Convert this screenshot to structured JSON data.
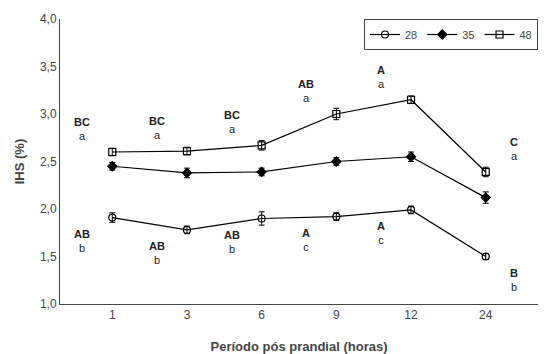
{
  "chart_data": {
    "type": "line",
    "categories": [
      "1",
      "3",
      "6",
      "9",
      "12",
      "24"
    ],
    "series": [
      {
        "name": "28",
        "color": "black",
        "marker": "circle-open",
        "line_style": "solid",
        "values": [
          1.91,
          1.78,
          1.9,
          1.92,
          1.99,
          1.5
        ],
        "errors": [
          0.05,
          0.04,
          0.07,
          0.04,
          0.04,
          0.03
        ]
      },
      {
        "name": "35",
        "color": "black",
        "marker": "diamond",
        "line_style": "solid",
        "values": [
          2.45,
          2.38,
          2.39,
          2.5,
          2.55,
          2.12
        ],
        "errors": [
          0.04,
          0.05,
          0.04,
          0.04,
          0.05,
          0.06
        ]
      },
      {
        "name": "48",
        "color": "black",
        "marker": "square-open",
        "line_style": "solid",
        "values": [
          2.6,
          2.61,
          2.67,
          3.0,
          3.15,
          2.39
        ],
        "errors": [
          0.04,
          0.04,
          0.05,
          0.06,
          0.04,
          0.05
        ]
      }
    ],
    "xlabel": "Período pós prandial (horas)",
    "ylabel": "IHS (%)",
    "ylim": [
      1.0,
      4.0
    ],
    "yticks": [
      {
        "value": 1.0,
        "label": "1,0"
      },
      {
        "value": 1.5,
        "label": "1,5"
      },
      {
        "value": 2.0,
        "label": "2,0"
      },
      {
        "value": 2.5,
        "label": "2,5"
      },
      {
        "value": 3.0,
        "label": "3,0"
      },
      {
        "value": 3.5,
        "label": "3,5"
      },
      {
        "value": 4.0,
        "label": "4,0"
      }
    ],
    "grid": false,
    "legend": "upper right",
    "annotations": [
      {
        "category": "1",
        "series": "48",
        "label": "BC",
        "sublabel": "a"
      },
      {
        "category": "1",
        "series": "28",
        "label": "AB",
        "sublabel": "b"
      },
      {
        "category": "3",
        "series": "48",
        "label": "BC",
        "sublabel": "a"
      },
      {
        "category": "3",
        "series": "28",
        "label": "AB",
        "sublabel": "b"
      },
      {
        "category": "6",
        "series": "48",
        "label": "BC",
        "sublabel": "a"
      },
      {
        "category": "6",
        "series": "28",
        "label": "AB",
        "sublabel": "b"
      },
      {
        "category": "9",
        "series": "48",
        "label": "AB",
        "sublabel": "a"
      },
      {
        "category": "9",
        "series": "28",
        "label": "A",
        "sublabel": "c"
      },
      {
        "category": "12",
        "series": "48",
        "label": "A",
        "sublabel": "a"
      },
      {
        "category": "12",
        "series": "28",
        "label": "A",
        "sublabel": "c"
      },
      {
        "category": "24",
        "series": "48",
        "label": "C",
        "sublabel": "a"
      },
      {
        "category": "24",
        "series": "28",
        "label": "B",
        "sublabel": "b"
      }
    ]
  }
}
